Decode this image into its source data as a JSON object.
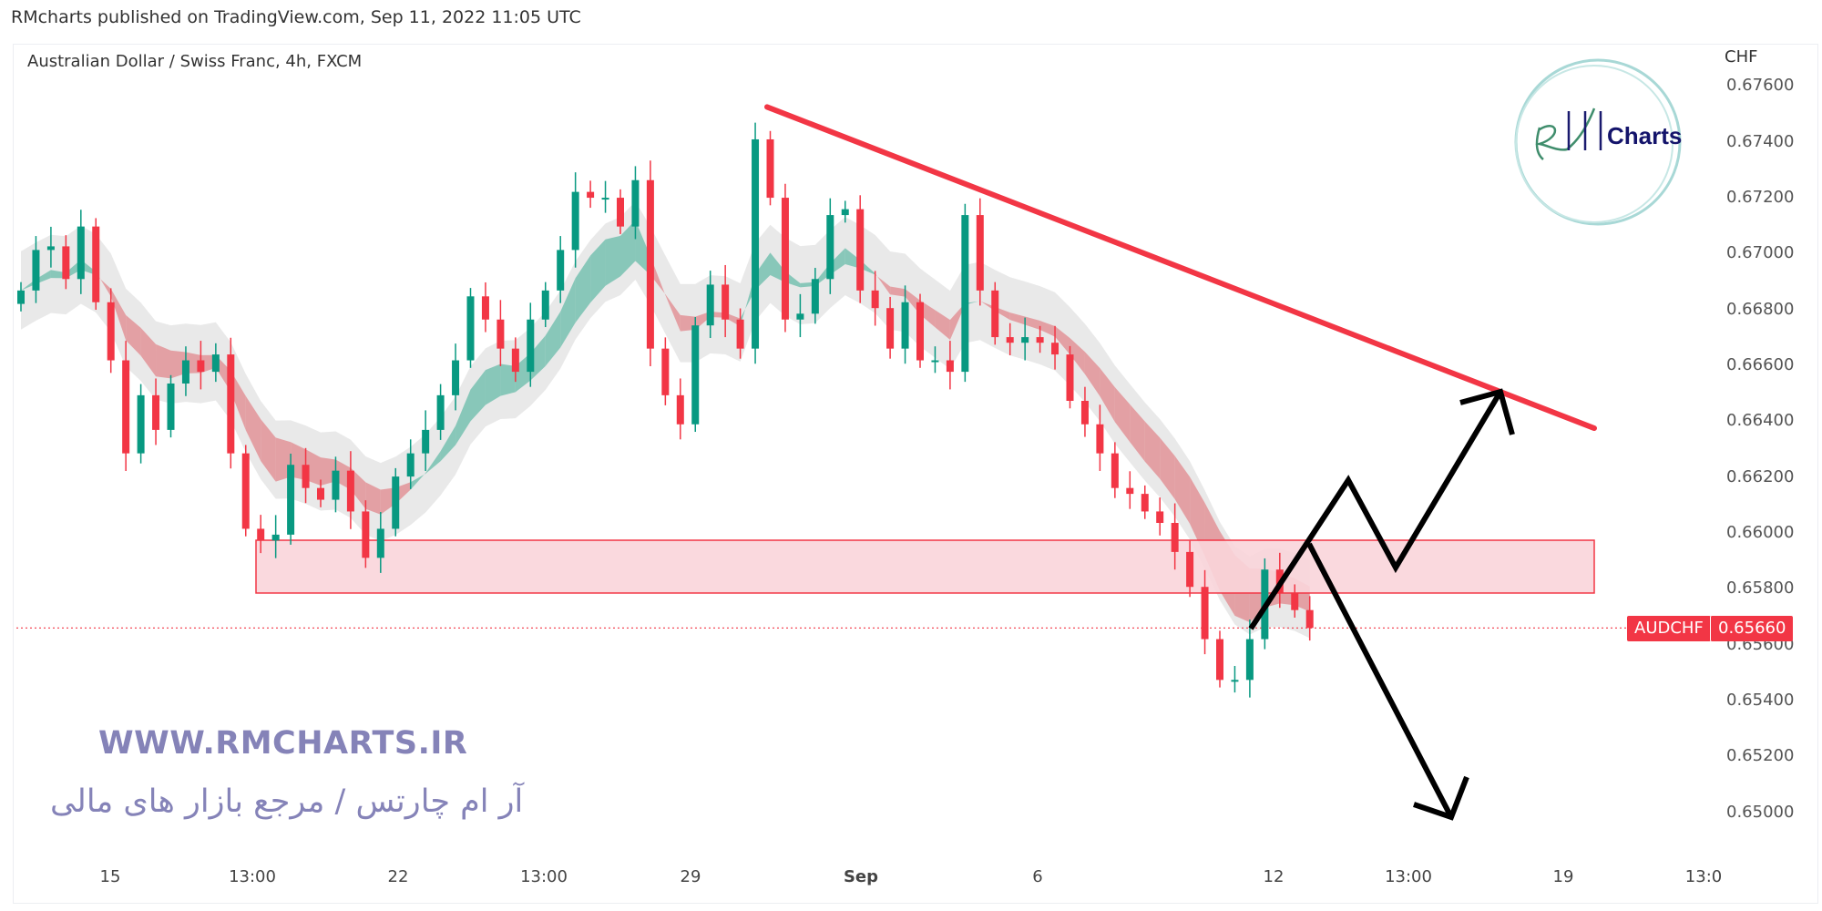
{
  "header": {
    "published": "RMcharts published on TradingView.com, Sep 11, 2022 11:05 UTC"
  },
  "symbol_title": "Australian Dollar / Swiss Franc, 4h, FXCM",
  "watermark": {
    "url": "WWW.RMCHARTS.IR",
    "persian": "آر ام چارتس / مرجع بازار های مالی",
    "logo_text": "Charts",
    "logo_script": "RM"
  },
  "price_badge": {
    "symbol": "AUDCHF",
    "price": "0.65660"
  },
  "colors": {
    "up": "#089981",
    "down": "#f23645",
    "trendline": "#f23645",
    "zone_fill": "#f9d5da",
    "zone_border": "#f23645",
    "arrows": "#000000",
    "watermark": "#8583b8"
  },
  "chart_data": {
    "type": "candlestick",
    "title": "Australian Dollar / Swiss Franc, 4h, FXCM",
    "ylabel": "CHF",
    "ylim": [
      0.6495,
      0.6765
    ],
    "grid": false,
    "y_ticks": [
      "0.67600",
      "0.67400",
      "0.67200",
      "0.67000",
      "0.66800",
      "0.66600",
      "0.66400",
      "0.66200",
      "0.66000",
      "0.65800",
      "0.65600",
      "0.65400",
      "0.65200",
      "0.65000"
    ],
    "x_ticks": [
      "15",
      "13:00",
      "22",
      "13:00",
      "29",
      "Sep",
      "6",
      "12",
      "13:00",
      "19",
      "13:0"
    ],
    "first_open": 0.6682,
    "closes": [
      0.66868,
      0.67013,
      0.67026,
      0.66909,
      0.67097,
      0.66826,
      0.66618,
      0.66285,
      0.66493,
      0.66369,
      0.66535,
      0.66618,
      0.66577,
      0.66639,
      0.66285,
      0.66015,
      0.65973,
      0.65994,
      0.66244,
      0.66161,
      0.66119,
      0.66223,
      0.66077,
      0.65911,
      0.66015,
      0.66202,
      0.66285,
      0.66369,
      0.66493,
      0.66618,
      0.66847,
      0.66764,
      0.6666,
      0.66577,
      0.66764,
      0.66868,
      0.67013,
      0.67221,
      0.672,
      0.672,
      0.67097,
      0.67263,
      0.6666,
      0.66493,
      0.66389,
      0.66743,
      0.66889,
      0.66764,
      0.6666,
      0.67409,
      0.672,
      0.66764,
      0.66785,
      0.66909,
      0.67138,
      0.67159,
      0.66868,
      0.66805,
      0.6666,
      0.66826,
      0.66618,
      0.66618,
      0.66577,
      0.67138,
      0.66868,
      0.66701,
      0.66681,
      0.66701,
      0.66681,
      0.66639,
      0.66473,
      0.66389,
      0.66285,
      0.66161,
      0.6614,
      0.66077,
      0.66036,
      0.65932,
      0.65807,
      0.6562,
      0.65474,
      0.65474,
      0.6562,
      0.65869,
      0.65786,
      0.65724,
      0.6566
    ],
    "last_price": 0.6566,
    "drawings": {
      "trendline": {
        "from_price": 0.67525,
        "to_price": 0.66375
      },
      "zone": {
        "top": 0.65974,
        "bottom": 0.65785
      }
    }
  }
}
